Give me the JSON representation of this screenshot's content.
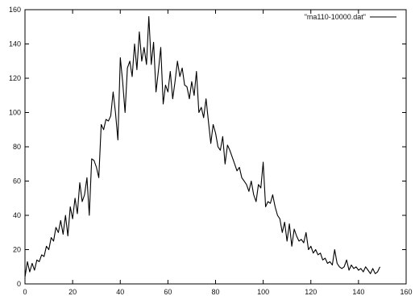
{
  "chart_data": {
    "type": "line",
    "title": "",
    "xlabel": "",
    "ylabel": "",
    "xlim": [
      0,
      160
    ],
    "ylim": [
      0,
      160
    ],
    "xticks": [
      0,
      20,
      40,
      60,
      80,
      100,
      120,
      140,
      160
    ],
    "yticks": [
      0,
      20,
      40,
      60,
      80,
      100,
      120,
      140,
      160
    ],
    "grid": false,
    "legend": {
      "placement": "top-right",
      "entries": [
        "\"ma110-10000.dat\""
      ]
    },
    "series": [
      {
        "name": "\"ma110-10000.dat\"",
        "color": "#000000",
        "x": [
          0,
          1,
          2,
          3,
          4,
          5,
          6,
          7,
          8,
          9,
          10,
          11,
          12,
          13,
          14,
          15,
          16,
          17,
          18,
          19,
          20,
          21,
          22,
          23,
          24,
          25,
          26,
          27,
          28,
          29,
          30,
          31,
          32,
          33,
          34,
          35,
          36,
          37,
          38,
          39,
          40,
          41,
          42,
          43,
          44,
          45,
          46,
          47,
          48,
          49,
          50,
          51,
          52,
          53,
          54,
          55,
          56,
          57,
          58,
          59,
          60,
          61,
          62,
          63,
          64,
          65,
          66,
          67,
          68,
          69,
          70,
          71,
          72,
          73,
          74,
          75,
          76,
          77,
          78,
          79,
          80,
          81,
          82,
          83,
          84,
          85,
          86,
          87,
          88,
          89,
          90,
          91,
          92,
          93,
          94,
          95,
          96,
          97,
          98,
          99,
          100,
          101,
          102,
          103,
          104,
          105,
          106,
          107,
          108,
          109,
          110,
          111,
          112,
          113,
          114,
          115,
          116,
          117,
          118,
          119,
          120,
          121,
          122,
          123,
          124,
          125,
          126,
          127,
          128,
          129,
          130,
          131,
          132,
          133,
          134,
          135,
          136,
          137,
          138,
          139,
          140,
          141,
          142,
          143,
          144,
          145,
          146,
          147,
          148,
          149
        ],
        "values": [
          4,
          13,
          7,
          12,
          8,
          14,
          13,
          17,
          16,
          22,
          20,
          27,
          25,
          33,
          30,
          37,
          29,
          40,
          28,
          45,
          38,
          50,
          41,
          59,
          48,
          52,
          62,
          40,
          73,
          72,
          68,
          62,
          93,
          90,
          96,
          95,
          98,
          112,
          100,
          84,
          132,
          118,
          100,
          126,
          130,
          121,
          140,
          125,
          147,
          130,
          138,
          128,
          156,
          128,
          141,
          112,
          124,
          138,
          105,
          116,
          112,
          124,
          108,
          118,
          130,
          121,
          126,
          116,
          115,
          108,
          118,
          110,
          124,
          100,
          103,
          97,
          108,
          95,
          82,
          93,
          88,
          80,
          78,
          86,
          70,
          81,
          78,
          74,
          70,
          66,
          68,
          62,
          60,
          58,
          54,
          60,
          52,
          48,
          58,
          56,
          71,
          45,
          48,
          47,
          52,
          45,
          40,
          38,
          30,
          36,
          25,
          35,
          22,
          32,
          28,
          25,
          26,
          24,
          30,
          20,
          22,
          18,
          20,
          17,
          18,
          14,
          15,
          12,
          13,
          11,
          20,
          12,
          10,
          9,
          10,
          14,
          8,
          11,
          9,
          10,
          8,
          9,
          7,
          10,
          8,
          6,
          9,
          6,
          7,
          10
        ]
      }
    ]
  }
}
